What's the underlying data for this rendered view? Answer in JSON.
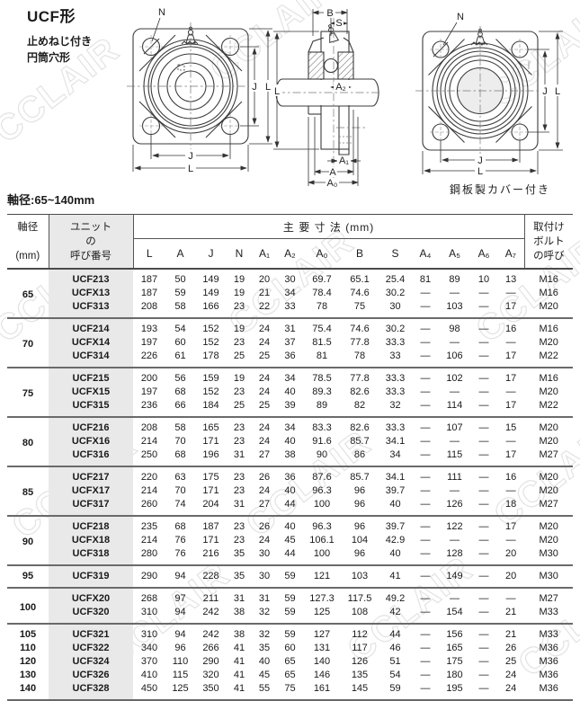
{
  "page": {
    "title": "UCF形",
    "subtitle_lines": [
      "止めねじ付き",
      "円筒穴形"
    ],
    "shaft_range": "軸径:65~140mm",
    "watermark": "CCLAIR"
  },
  "drawings": {
    "front": {
      "labels": {
        "n": "N",
        "j": "J",
        "l": "L"
      }
    },
    "section": {
      "labels": {
        "b": "B",
        "s": "S",
        "a2": "A₂",
        "a1": "A₁",
        "a": "A",
        "a0": "A₀",
        "l": "L"
      }
    },
    "cover": {
      "labels": {
        "n": "N",
        "j": "J",
        "l": "L"
      },
      "caption": "鋼板製カバー付き"
    }
  },
  "table": {
    "headers": {
      "shaft_lines": [
        "軸径",
        "",
        "(mm)"
      ],
      "unit_lines": [
        "ユニット",
        "の",
        "呼び番号"
      ],
      "dims_group": "主 要 寸 法 (mm)",
      "dims": [
        "L",
        "A",
        "J",
        "N",
        "A₁",
        "A₂",
        "A₀",
        "B",
        "S",
        "A₄",
        "A₅",
        "A₆",
        "A₇"
      ],
      "bolt_lines": [
        "取付け",
        "ボルト",
        "の呼び"
      ]
    },
    "groups": [
      {
        "shaft": "65",
        "rows": [
          {
            "name": "UCF213",
            "values": [
              "187",
              "50",
              "149",
              "19",
              "20",
              "30",
              "69.7",
              "65.1",
              "25.4",
              "81",
              "89",
              "10",
              "13"
            ],
            "bolt": "M16"
          },
          {
            "name": "UCFX13",
            "values": [
              "187",
              "59",
              "149",
              "19",
              "21",
              "34",
              "78.4",
              "74.6",
              "30.2",
              "—",
              "—",
              "—",
              "—"
            ],
            "bolt": "M16"
          },
          {
            "name": "UCF313",
            "values": [
              "208",
              "58",
              "166",
              "23",
              "22",
              "33",
              "78",
              "75",
              "30",
              "—",
              "103",
              "—",
              "17"
            ],
            "bolt": "M20"
          }
        ]
      },
      {
        "shaft": "70",
        "rows": [
          {
            "name": "UCF214",
            "values": [
              "193",
              "54",
              "152",
              "19",
              "24",
              "31",
              "75.4",
              "74.6",
              "30.2",
              "—",
              "98",
              "—",
              "16"
            ],
            "bolt": "M16"
          },
          {
            "name": "UCFX14",
            "values": [
              "197",
              "60",
              "152",
              "23",
              "24",
              "37",
              "81.5",
              "77.8",
              "33.3",
              "—",
              "—",
              "—",
              "—"
            ],
            "bolt": "M20"
          },
          {
            "name": "UCF314",
            "values": [
              "226",
              "61",
              "178",
              "25",
              "25",
              "36",
              "81",
              "78",
              "33",
              "—",
              "106",
              "—",
              "17"
            ],
            "bolt": "M22"
          }
        ]
      },
      {
        "shaft": "75",
        "rows": [
          {
            "name": "UCF215",
            "values": [
              "200",
              "56",
              "159",
              "19",
              "24",
              "34",
              "78.5",
              "77.8",
              "33.3",
              "—",
              "102",
              "—",
              "17"
            ],
            "bolt": "M16"
          },
          {
            "name": "UCFX15",
            "values": [
              "197",
              "68",
              "152",
              "23",
              "24",
              "40",
              "89.3",
              "82.6",
              "33.3",
              "—",
              "—",
              "—",
              "—"
            ],
            "bolt": "M20"
          },
          {
            "name": "UCF315",
            "values": [
              "236",
              "66",
              "184",
              "25",
              "25",
              "39",
              "89",
              "82",
              "32",
              "—",
              "114",
              "—",
              "17"
            ],
            "bolt": "M22"
          }
        ]
      },
      {
        "shaft": "80",
        "rows": [
          {
            "name": "UCF216",
            "values": [
              "208",
              "58",
              "165",
              "23",
              "24",
              "34",
              "83.3",
              "82.6",
              "33.3",
              "—",
              "107",
              "—",
              "15"
            ],
            "bolt": "M20"
          },
          {
            "name": "UCFX16",
            "values": [
              "214",
              "70",
              "171",
              "23",
              "24",
              "40",
              "91.6",
              "85.7",
              "34.1",
              "—",
              "—",
              "—",
              "—"
            ],
            "bolt": "M20"
          },
          {
            "name": "UCF316",
            "values": [
              "250",
              "68",
              "196",
              "31",
              "27",
              "38",
              "90",
              "86",
              "34",
              "—",
              "115",
              "—",
              "17"
            ],
            "bolt": "M27"
          }
        ]
      },
      {
        "shaft": "85",
        "rows": [
          {
            "name": "UCF217",
            "values": [
              "220",
              "63",
              "175",
              "23",
              "26",
              "36",
              "87.6",
              "85.7",
              "34.1",
              "—",
              "111",
              "—",
              "16"
            ],
            "bolt": "M20"
          },
          {
            "name": "UCFX17",
            "values": [
              "214",
              "70",
              "171",
              "23",
              "24",
              "40",
              "96.3",
              "96",
              "39.7",
              "—",
              "—",
              "—",
              "—"
            ],
            "bolt": "M20"
          },
          {
            "name": "UCF317",
            "values": [
              "260",
              "74",
              "204",
              "31",
              "27",
              "44",
              "100",
              "96",
              "40",
              "—",
              "126",
              "—",
              "18"
            ],
            "bolt": "M27"
          }
        ]
      },
      {
        "shaft": "90",
        "rows": [
          {
            "name": "UCF218",
            "values": [
              "235",
              "68",
              "187",
              "23",
              "26",
              "40",
              "96.3",
              "96",
              "39.7",
              "—",
              "122",
              "—",
              "17"
            ],
            "bolt": "M20"
          },
          {
            "name": "UCFX18",
            "values": [
              "214",
              "76",
              "171",
              "23",
              "24",
              "45",
              "106.1",
              "104",
              "42.9",
              "—",
              "—",
              "—",
              "—"
            ],
            "bolt": "M20"
          },
          {
            "name": "UCF318",
            "values": [
              "280",
              "76",
              "216",
              "35",
              "30",
              "44",
              "100",
              "96",
              "40",
              "—",
              "128",
              "—",
              "20"
            ],
            "bolt": "M30"
          }
        ]
      },
      {
        "shaft": "95",
        "rows": [
          {
            "name": "UCF319",
            "values": [
              "290",
              "94",
              "228",
              "35",
              "30",
              "59",
              "121",
              "103",
              "41",
              "—",
              "149",
              "—",
              "20"
            ],
            "bolt": "M30"
          }
        ]
      },
      {
        "shaft": "100",
        "rows": [
          {
            "name": "UCFX20",
            "values": [
              "268",
              "97",
              "211",
              "31",
              "31",
              "59",
              "127.3",
              "117.5",
              "49.2",
              "—",
              "—",
              "—",
              "—"
            ],
            "bolt": "M27"
          },
          {
            "name": "UCF320",
            "values": [
              "310",
              "94",
              "242",
              "38",
              "32",
              "59",
              "125",
              "108",
              "42",
              "—",
              "154",
              "—",
              "21"
            ],
            "bolt": "M33"
          }
        ]
      },
      {
        "rows": [
          {
            "size": "105",
            "name": "UCF321",
            "values": [
              "310",
              "94",
              "242",
              "38",
              "32",
              "59",
              "127",
              "112",
              "44",
              "—",
              "156",
              "—",
              "21"
            ],
            "bolt": "M33"
          },
          {
            "size": "110",
            "name": "UCF322",
            "values": [
              "340",
              "96",
              "266",
              "41",
              "35",
              "60",
              "131",
              "117",
              "46",
              "—",
              "165",
              "—",
              "26"
            ],
            "bolt": "M36"
          },
          {
            "size": "120",
            "name": "UCF324",
            "values": [
              "370",
              "110",
              "290",
              "41",
              "40",
              "65",
              "140",
              "126",
              "51",
              "—",
              "175",
              "—",
              "25"
            ],
            "bolt": "M36"
          },
          {
            "size": "130",
            "name": "UCF326",
            "values": [
              "410",
              "115",
              "320",
              "41",
              "45",
              "65",
              "146",
              "135",
              "54",
              "—",
              "180",
              "—",
              "24"
            ],
            "bolt": "M36"
          },
          {
            "size": "140",
            "name": "UCF328",
            "values": [
              "450",
              "125",
              "350",
              "41",
              "55",
              "75",
              "161",
              "145",
              "59",
              "—",
              "195",
              "—",
              "24"
            ],
            "bolt": "M36"
          }
        ]
      }
    ]
  }
}
